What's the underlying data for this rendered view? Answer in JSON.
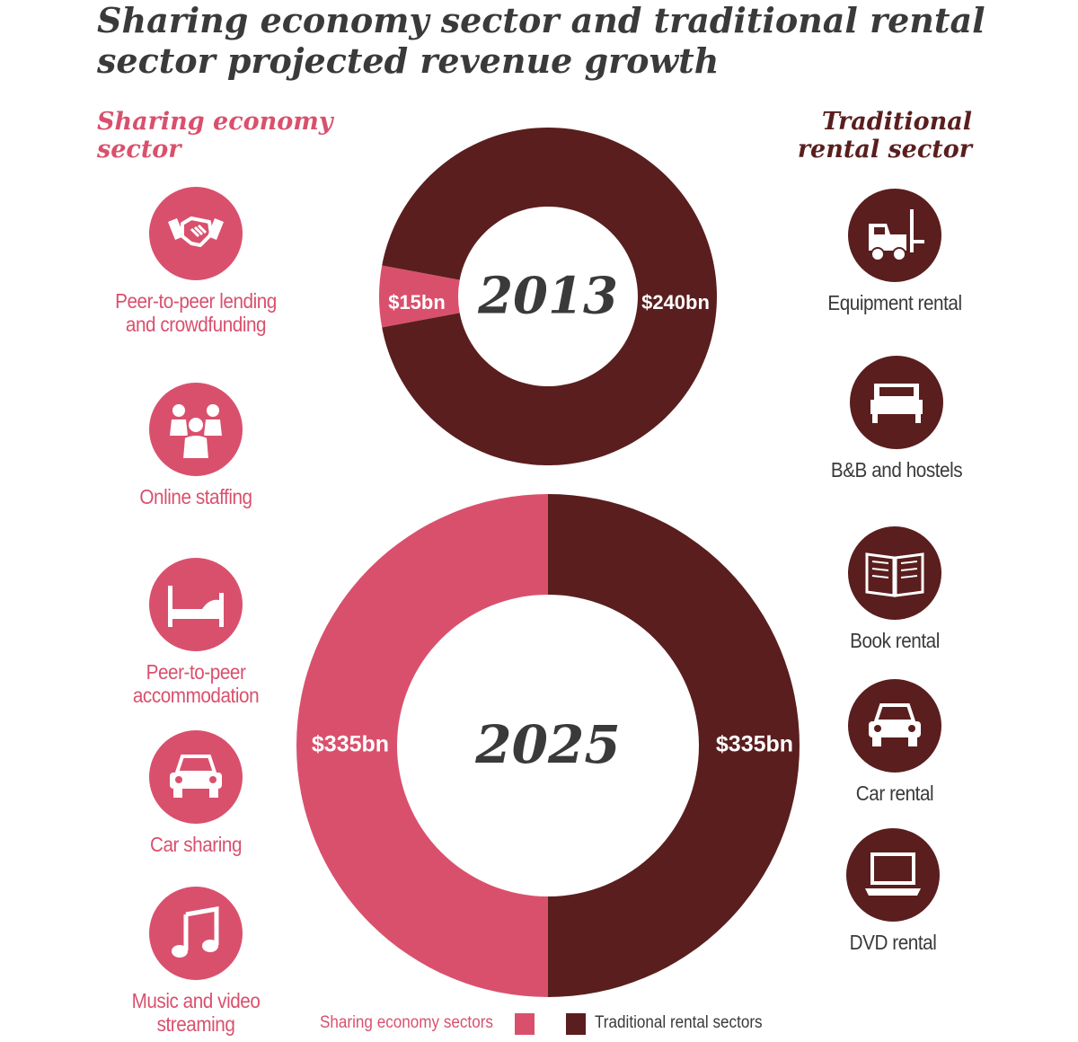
{
  "title": "Sharing economy sector and traditional rental sector projected revenue growth",
  "headers": {
    "sharing": "Sharing economy sector",
    "traditional": "Traditional rental sector"
  },
  "colors": {
    "sharing": "#d9506d",
    "traditional": "#5a1e1e"
  },
  "sharing_items": [
    {
      "label": "Peer-to-peer lending and crowdfunding",
      "icon": "handshake-icon"
    },
    {
      "label": "Online staffing",
      "icon": "people-icon"
    },
    {
      "label": "Peer-to-peer accommodation",
      "icon": "bed-icon"
    },
    {
      "label": "Car sharing",
      "icon": "car-icon"
    },
    {
      "label": "Music and video streaming",
      "icon": "music-note-icon"
    }
  ],
  "traditional_items": [
    {
      "label": "Equipment rental",
      "icon": "forklift-icon"
    },
    {
      "label": "B&B and hostels",
      "icon": "bed-icon"
    },
    {
      "label": "Book rental",
      "icon": "book-icon"
    },
    {
      "label": "Car rental",
      "icon": "car-icon"
    },
    {
      "label": "DVD rental",
      "icon": "laptop-icon"
    }
  ],
  "legend": {
    "sharing": "Sharing economy sectors",
    "traditional": "Traditional rental sectors"
  },
  "chart_data": [
    {
      "type": "pie",
      "center_label": "2013",
      "slices": [
        {
          "name": "Sharing economy sectors",
          "value": 15,
          "label": "$15bn"
        },
        {
          "name": "Traditional rental sectors",
          "value": 240,
          "label": "$240bn"
        }
      ]
    },
    {
      "type": "pie",
      "center_label": "2025",
      "slices": [
        {
          "name": "Sharing economy sectors",
          "value": 335,
          "label": "$335bn"
        },
        {
          "name": "Traditional rental sectors",
          "value": 335,
          "label": "$335bn"
        }
      ]
    }
  ]
}
